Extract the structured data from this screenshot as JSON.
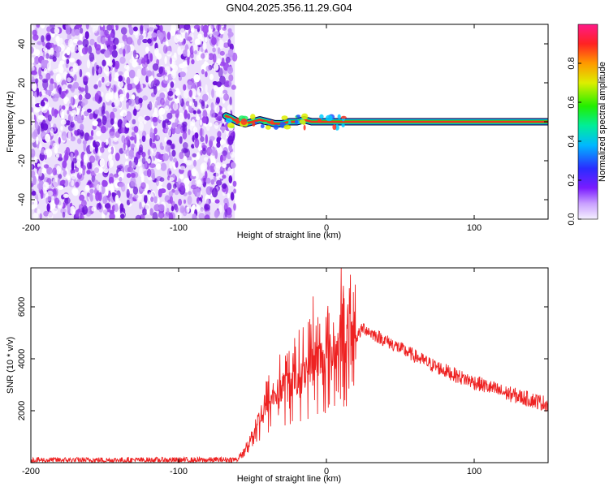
{
  "title": "GN04.2025.356.11.29.G04",
  "chart_data": [
    {
      "type": "heatmap",
      "name": "spectrogram",
      "xlabel": "Height of straight line (km)",
      "ylabel": "Frequency (Hz)",
      "xlim": [
        -200,
        150
      ],
      "ylim": [
        -50,
        50
      ],
      "xticks": [
        -200,
        -100,
        0,
        100
      ],
      "yticks": [
        -40,
        -20,
        0,
        20,
        40
      ],
      "noise_region": {
        "x_from": -200,
        "x_to": -62,
        "color": "#8a2be2"
      },
      "signal_track": {
        "x": [
          -68,
          -65,
          -60,
          -55,
          -50,
          -45,
          -40,
          -35,
          -30,
          -25,
          -20,
          -15,
          -10,
          -5,
          0,
          10,
          50,
          100,
          150
        ],
        "freq_hz": [
          3,
          2,
          0,
          -1,
          0,
          1,
          0,
          -1,
          -1,
          0,
          0,
          1,
          0,
          0,
          0,
          0,
          0,
          0,
          0
        ],
        "amplitude": [
          0.3,
          0.35,
          0.45,
          0.5,
          0.55,
          0.6,
          0.55,
          0.6,
          0.65,
          0.7,
          0.7,
          0.75,
          0.8,
          0.85,
          0.9,
          0.95,
          0.95,
          0.95,
          0.95
        ]
      },
      "colorbar": {
        "label": "Normalized spectral amplitude",
        "range": [
          0,
          1
        ],
        "ticks": [
          "0.0",
          "0.2",
          "0.4",
          "0.6",
          "0.8"
        ]
      }
    },
    {
      "type": "line",
      "name": "snr",
      "xlabel": "Height of straight line (km)",
      "ylabel": "SNR (10 * v/v)",
      "xlim": [
        -200,
        150
      ],
      "ylim": [
        0,
        7500
      ],
      "xticks": [
        -200,
        -100,
        0,
        100
      ],
      "yticks": [
        2000,
        4000,
        6000
      ],
      "color": "#ee2222",
      "series": [
        {
          "name": "SNR",
          "x": [
            -200,
            -180,
            -160,
            -140,
            -120,
            -100,
            -80,
            -60,
            -55,
            -50,
            -45,
            -40,
            -35,
            -30,
            -25,
            -20,
            -15,
            -10,
            -5,
            0,
            5,
            10,
            20,
            25,
            30,
            40,
            50,
            60,
            70,
            80,
            90,
            100,
            110,
            120,
            130,
            140,
            150
          ],
          "y": [
            100,
            100,
            100,
            100,
            100,
            100,
            100,
            120,
            500,
            1100,
            1700,
            2200,
            2600,
            2900,
            3100,
            3300,
            3500,
            3800,
            4000,
            4100,
            4300,
            4500,
            4800,
            5200,
            5000,
            4700,
            4400,
            4100,
            3800,
            3550,
            3300,
            3100,
            2900,
            2700,
            2550,
            2400,
            2250
          ]
        }
      ],
      "spikes": [
        {
          "x": -9,
          "y": 6400
        },
        {
          "x": 10,
          "y": 7500
        }
      ]
    }
  ]
}
